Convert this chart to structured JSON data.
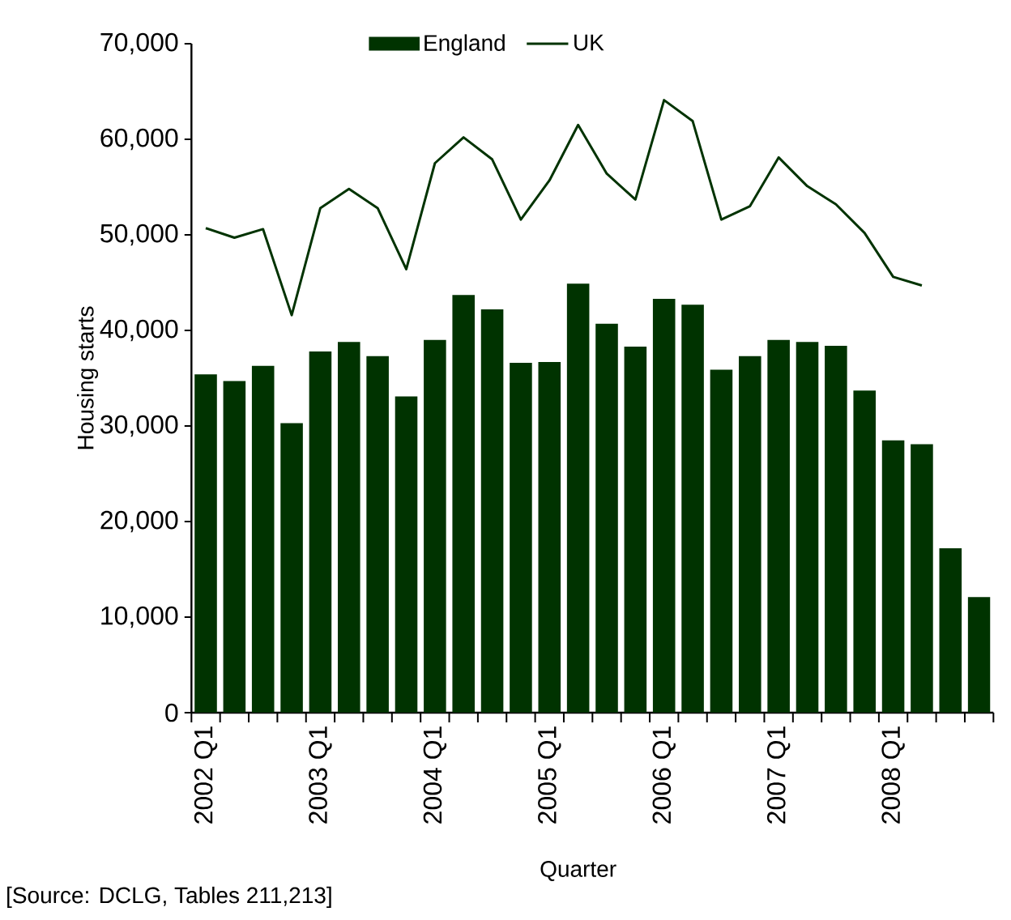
{
  "chart_data": {
    "type": "bar",
    "ylabel": "Housing starts",
    "xlabel": "Quarter",
    "categories": [
      "2002 Q1",
      null,
      null,
      null,
      "2003 Q1",
      null,
      null,
      null,
      "2004 Q1",
      null,
      null,
      null,
      "2005 Q1",
      null,
      null,
      null,
      "2006 Q1",
      null,
      null,
      null,
      "2007 Q1",
      null,
      null,
      null,
      "2008 Q1",
      null,
      null,
      null
    ],
    "series": [
      {
        "name": "England",
        "color": "#003300",
        "values": [
          35400,
          34700,
          36300,
          30300,
          37800,
          38800,
          37300,
          33100,
          39000,
          43700,
          42200,
          36600,
          36700,
          44900,
          40700,
          38300,
          43300,
          42700,
          35900,
          37300,
          39000,
          38800,
          38400,
          33700,
          28500,
          28100,
          17200,
          12100
        ]
      },
      {
        "name": "UK",
        "type": "line",
        "color": "#003300",
        "values": [
          50700,
          49700,
          50600,
          41600,
          52800,
          54800,
          52800,
          46400,
          57500,
          60200,
          57900,
          51600,
          55700,
          61500,
          56400,
          53700,
          64100,
          61900,
          51600,
          53000,
          58100,
          55100,
          53200,
          50200,
          45600,
          44700,
          null,
          null
        ]
      }
    ],
    "ylim": [
      0,
      70000
    ],
    "yticks": [
      {
        "value": 0,
        "label": "0"
      },
      {
        "value": 10000,
        "label": "10,000"
      },
      {
        "value": 20000,
        "label": "20,000"
      },
      {
        "value": 30000,
        "label": "30,000"
      },
      {
        "value": 40000,
        "label": "40,000"
      },
      {
        "value": 50000,
        "label": "50,000"
      },
      {
        "value": 60000,
        "label": "60,000"
      },
      {
        "value": 70000,
        "label": "70,000"
      }
    ],
    "legend": "top",
    "grid": false,
    "marker": "none",
    "line_style": "solid",
    "annotations": [
      "[Source: DCLG, Tables 211,213]"
    ]
  }
}
